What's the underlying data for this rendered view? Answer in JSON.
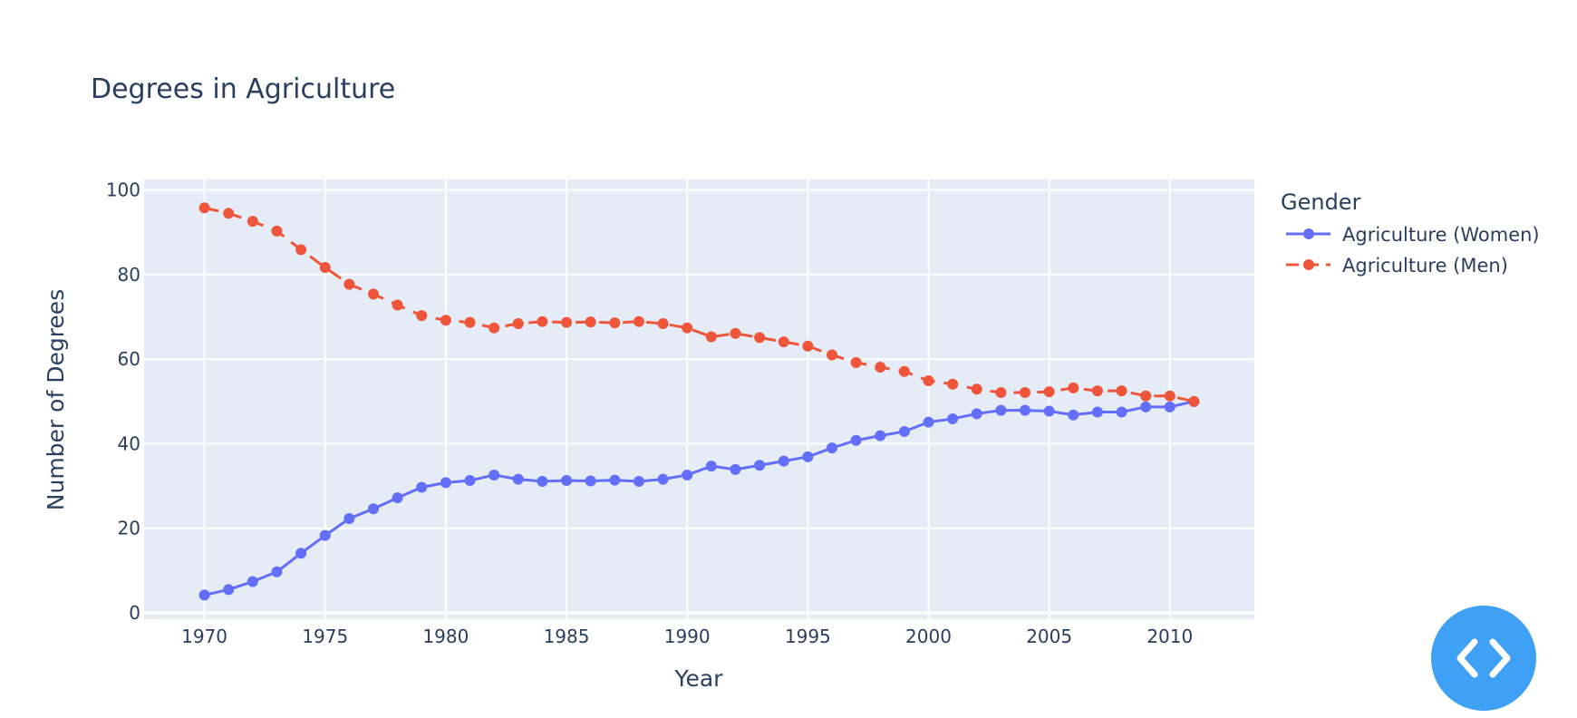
{
  "chart_data": {
    "type": "line",
    "title": "Degrees in Agriculture",
    "xlabel": "Year",
    "ylabel": "Number of Degrees",
    "xlim": [
      1967.5,
      2013.5
    ],
    "ylim": [
      -1.5,
      102.5
    ],
    "xticks": [
      1970,
      1975,
      1980,
      1985,
      1990,
      1995,
      2000,
      2005,
      2010
    ],
    "yticks": [
      0,
      20,
      40,
      60,
      80,
      100
    ],
    "grid": true,
    "legend": {
      "title": "Gender",
      "position": "top-right"
    },
    "x": [
      1970,
      1971,
      1972,
      1973,
      1974,
      1975,
      1976,
      1977,
      1978,
      1979,
      1980,
      1981,
      1982,
      1983,
      1984,
      1985,
      1986,
      1987,
      1988,
      1989,
      1990,
      1991,
      1992,
      1993,
      1994,
      1995,
      1996,
      1997,
      1998,
      1999,
      2000,
      2001,
      2002,
      2003,
      2004,
      2005,
      2006,
      2007,
      2008,
      2009,
      2010,
      2011
    ],
    "series": [
      {
        "name": "Agriculture (Women)",
        "color": "#636efa",
        "dash": "solid",
        "values": [
          4.2,
          5.5,
          7.4,
          9.7,
          14.1,
          18.3,
          22.3,
          24.6,
          27.2,
          29.7,
          30.8,
          31.3,
          32.6,
          31.6,
          31.1,
          31.3,
          31.2,
          31.4,
          31.1,
          31.6,
          32.6,
          34.7,
          33.9,
          34.9,
          35.9,
          36.9,
          39.0,
          40.8,
          41.9,
          42.9,
          45.1,
          45.9,
          47.1,
          47.9,
          47.9,
          47.7,
          46.8,
          47.5,
          47.5,
          48.7,
          48.7,
          50.0
        ]
      },
      {
        "name": "Agriculture (Men)",
        "color": "#ef553b",
        "dash": "dash",
        "values": [
          95.8,
          94.5,
          92.6,
          90.3,
          85.9,
          81.7,
          77.7,
          75.4,
          72.8,
          70.3,
          69.2,
          68.7,
          67.4,
          68.4,
          68.9,
          68.7,
          68.8,
          68.6,
          68.9,
          68.4,
          67.4,
          65.3,
          66.1,
          65.1,
          64.1,
          63.1,
          61.0,
          59.2,
          58.1,
          57.1,
          54.9,
          54.1,
          52.9,
          52.1,
          52.1,
          52.3,
          53.2,
          52.5,
          52.5,
          51.3,
          51.3,
          50.0
        ]
      }
    ]
  },
  "ui": {
    "embed_button": {
      "icon": "code-icon",
      "color": "#3fa1f5"
    }
  }
}
